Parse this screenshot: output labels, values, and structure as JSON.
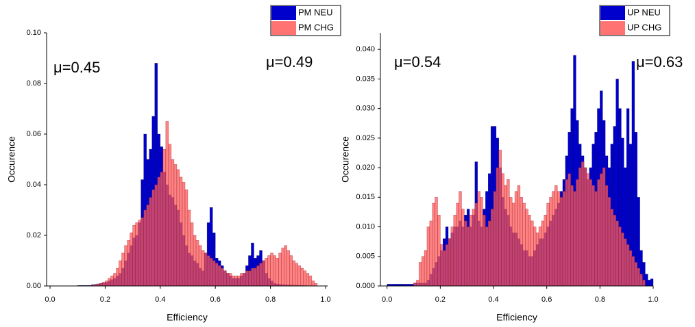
{
  "chart_data": [
    {
      "type": "histogram",
      "x_label": "Efficiency",
      "y_label": "Occurence",
      "annotations": [
        "μ=0.45",
        "μ=0.49"
      ],
      "legend": "upper right",
      "bins": [
        0,
        0.01,
        0.02,
        0.03,
        0.04,
        0.05,
        0.06,
        0.07,
        0.08,
        0.09,
        0.1,
        0.11,
        0.12,
        0.13,
        0.14,
        0.15,
        0.16,
        0.17,
        0.18,
        0.19,
        0.2,
        0.21,
        0.22,
        0.23,
        0.24,
        0.25,
        0.26,
        0.27,
        0.28,
        0.29,
        0.3,
        0.31,
        0.32,
        0.33,
        0.34,
        0.35,
        0.36,
        0.37,
        0.38,
        0.39,
        0.4,
        0.41,
        0.42,
        0.43,
        0.44,
        0.45,
        0.46,
        0.47,
        0.48,
        0.49,
        0.5,
        0.51,
        0.52,
        0.53,
        0.54,
        0.55,
        0.56,
        0.57,
        0.58,
        0.59,
        0.6,
        0.61,
        0.62,
        0.63,
        0.64,
        0.65,
        0.66,
        0.67,
        0.68,
        0.69,
        0.7,
        0.71,
        0.72,
        0.73,
        0.74,
        0.75,
        0.76,
        0.77,
        0.78,
        0.79,
        0.8,
        0.81,
        0.82,
        0.83,
        0.84,
        0.85,
        0.86,
        0.87,
        0.88,
        0.89,
        0.9,
        0.91,
        0.92,
        0.93,
        0.94,
        0.95,
        0.96,
        0.97,
        0.98,
        0.99,
        1
      ],
      "series": [
        {
          "name": "PM NEU",
          "color": "#0000cc",
          "values": [
            0,
            0,
            0,
            0,
            0,
            0,
            0,
            0,
            0,
            0,
            0.0002,
            0.0002,
            0.0002,
            0.0002,
            0.0002,
            0.0005,
            0.0006,
            0.0008,
            0.001,
            0.0012,
            0.0015,
            0.002,
            0.0025,
            0.003,
            0.004,
            0.005,
            0.007,
            0.01,
            0.013,
            0.016,
            0.019,
            0.02,
            0.025,
            0.042,
            0.06,
            0.05,
            0.054,
            0.067,
            0.088,
            0.06,
            0.055,
            0.045,
            0.04,
            0.036,
            0.035,
            0.032,
            0.03,
            0.025,
            0.02,
            0.016,
            0.013,
            0.012,
            0.01,
            0.009,
            0.007,
            0.006,
            0.013,
            0.025,
            0.031,
            0.021,
            0.011,
            0.01,
            0.008,
            0.006,
            0.005,
            0.004,
            0.003,
            0.003,
            0.003,
            0.004,
            0.005,
            0.008,
            0.012,
            0.017,
            0.011,
            0.012,
            0.014,
            0.01,
            0.005,
            0.003,
            0.002,
            0.001,
            0.0008,
            0.0006,
            0.0005,
            0.0005,
            0.0004,
            0.0004,
            0.0003,
            0.0003,
            0.0002,
            0.0002,
            0.0002,
            0.0001,
            0.0001,
            0.0001,
            0,
            0,
            0,
            0
          ]
        },
        {
          "name": "PM CHG",
          "color": "#ff5a5a",
          "values": [
            0,
            0,
            0,
            0,
            0,
            0,
            0,
            0,
            0,
            0,
            0,
            0,
            0,
            0,
            0,
            0.0003,
            0.0005,
            0.0008,
            0.001,
            0.0015,
            0.002,
            0.003,
            0.004,
            0.005,
            0.007,
            0.01,
            0.013,
            0.016,
            0.018,
            0.021,
            0.024,
            0.025,
            0.026,
            0.027,
            0.03,
            0.032,
            0.035,
            0.038,
            0.04,
            0.043,
            0.045,
            0.054,
            0.065,
            0.056,
            0.05,
            0.048,
            0.046,
            0.043,
            0.041,
            0.038,
            0.03,
            0.025,
            0.02,
            0.018,
            0.016,
            0.014,
            0.013,
            0.012,
            0.011,
            0.01,
            0.009,
            0.008,
            0.007,
            0.006,
            0.005,
            0.005,
            0.004,
            0.004,
            0.004,
            0.005,
            0.005,
            0.006,
            0.006,
            0.007,
            0.007,
            0.008,
            0.009,
            0.01,
            0.011,
            0.012,
            0.013,
            0.012,
            0.011,
            0.013,
            0.015,
            0.016,
            0.014,
            0.012,
            0.01,
            0.009,
            0.008,
            0.007,
            0.006,
            0.005,
            0.004,
            0.002,
            0.001,
            0,
            0,
            0
          ]
        }
      ],
      "xlim": [
        -0.0125,
        1.0075
      ],
      "ylim": [
        0,
        0.1
      ],
      "xticks": [
        {
          "value": 0,
          "label": "0.0"
        },
        0.2,
        0.4,
        0.6,
        0.8,
        {
          "value": 1,
          "label": "1.0"
        }
      ],
      "yticks": [
        {
          "value": 0,
          "label": "0.00"
        },
        {
          "value": 0.02,
          "label": "0.02"
        },
        {
          "value": 0.04,
          "label": "0.04"
        },
        {
          "value": 0.06,
          "label": "0.06"
        },
        {
          "value": 0.08,
          "label": "0.08"
        },
        {
          "value": 0.1,
          "label": "0.10"
        }
      ]
    },
    {
      "type": "histogram",
      "x_label": "Efficiency",
      "y_label": "Occurence",
      "annotations": [
        "μ=0.54",
        "μ=0.63"
      ],
      "legend": "upper right",
      "bins": [
        0,
        0.01,
        0.02,
        0.03,
        0.04,
        0.05,
        0.06,
        0.07,
        0.08,
        0.09,
        0.1,
        0.11,
        0.12,
        0.13,
        0.14,
        0.15,
        0.16,
        0.17,
        0.18,
        0.19,
        0.2,
        0.21,
        0.22,
        0.23,
        0.24,
        0.25,
        0.26,
        0.27,
        0.28,
        0.29,
        0.3,
        0.31,
        0.32,
        0.33,
        0.34,
        0.35,
        0.36,
        0.37,
        0.38,
        0.39,
        0.4,
        0.41,
        0.42,
        0.43,
        0.44,
        0.45,
        0.46,
        0.47,
        0.48,
        0.49,
        0.5,
        0.51,
        0.52,
        0.53,
        0.54,
        0.55,
        0.56,
        0.57,
        0.58,
        0.59,
        0.6,
        0.61,
        0.62,
        0.63,
        0.64,
        0.65,
        0.66,
        0.67,
        0.68,
        0.69,
        0.7,
        0.71,
        0.72,
        0.73,
        0.74,
        0.75,
        0.76,
        0.77,
        0.78,
        0.79,
        0.8,
        0.81,
        0.82,
        0.83,
        0.84,
        0.85,
        0.86,
        0.87,
        0.88,
        0.89,
        0.9,
        0.91,
        0.92,
        0.93,
        0.94,
        0.95,
        0.96,
        0.97,
        0.98,
        0.99,
        1
      ],
      "series": [
        {
          "name": "UP NEU",
          "color": "#0000cc",
          "values": [
            0.0003,
            0.0003,
            0.0003,
            0.0003,
            0.0003,
            0.0003,
            0.0003,
            0.0003,
            0.0003,
            0.0003,
            0.0005,
            0.0005,
            0.0005,
            0.0005,
            0.0005,
            0.001,
            0.002,
            0.003,
            0.004,
            0.005,
            0.006,
            0.008,
            0.01,
            0.008,
            0.009,
            0.01,
            0.01,
            0.011,
            0.01,
            0.012,
            0.013,
            0.01,
            0.012,
            0.021,
            0.011,
            0.01,
            0.013,
            0.016,
            0.019,
            0.027,
            0.027,
            0.025,
            0.02,
            0.015,
            0.013,
            0.012,
            0.01,
            0.009,
            0.009,
            0.008,
            0.007,
            0.006,
            0.006,
            0.005,
            0.005,
            0.006,
            0.007,
            0.008,
            0.008,
            0.009,
            0.01,
            0.011,
            0.012,
            0.013,
            0.014,
            0.016,
            0.018,
            0.022,
            0.026,
            0.03,
            0.039,
            0.028,
            0.024,
            0.022,
            0.02,
            0.018,
            0.02,
            0.024,
            0.026,
            0.03,
            0.033,
            0.028,
            0.022,
            0.02,
            0.024,
            0.027,
            0.035,
            0.03,
            0.025,
            0.02,
            0.03,
            0.024,
            0.038,
            0.026,
            0.015,
            0.006,
            0.004,
            0.002,
            0.001,
            0.0012
          ]
        },
        {
          "name": "UP CHG",
          "color": "#ff5a5a",
          "values": [
            0,
            0,
            0,
            0,
            0,
            0,
            0,
            0,
            0,
            0,
            0.0005,
            0.001,
            0.004,
            0.005,
            0.006,
            0.01,
            0.011,
            0.014,
            0.015,
            0.012,
            0.007,
            0.006,
            0.007,
            0.008,
            0.01,
            0.012,
            0.014,
            0.016,
            0.013,
            0.011,
            0.01,
            0.012,
            0.013,
            0.014,
            0.016,
            0.015,
            0.012,
            0.01,
            0.011,
            0.013,
            0.016,
            0.02,
            0.023,
            0.019,
            0.017,
            0.018,
            0.015,
            0.014,
            0.016,
            0.017,
            0.015,
            0.014,
            0.013,
            0.012,
            0.011,
            0.01,
            0.009,
            0.01,
            0.011,
            0.012,
            0.014,
            0.015,
            0.016,
            0.017,
            0.016,
            0.015,
            0.016,
            0.018,
            0.019,
            0.017,
            0.016,
            0.018,
            0.02,
            0.021,
            0.02,
            0.019,
            0.018,
            0.017,
            0.016,
            0.018,
            0.019,
            0.02,
            0.017,
            0.015,
            0.013,
            0.012,
            0.011,
            0.01,
            0.009,
            0.008,
            0.007,
            0.006,
            0.005,
            0.004,
            0.003,
            0.002,
            0.001,
            0,
            0,
            0
          ]
        }
      ],
      "xlim": [
        -0.025,
        1.0
      ],
      "ylim": [
        0,
        0.0428
      ],
      "xticks": [
        {
          "value": 0,
          "label": "0.0"
        },
        0.2,
        0.4,
        0.6,
        0.8,
        {
          "value": 1,
          "label": "1.0"
        }
      ],
      "yticks": [
        {
          "value": 0,
          "label": "0.000"
        },
        {
          "value": 0.005,
          "label": "0.005"
        },
        {
          "value": 0.01,
          "label": "0.010"
        },
        {
          "value": 0.015,
          "label": "0.015"
        },
        {
          "value": 0.02,
          "label": "0.020"
        },
        {
          "value": 0.025,
          "label": "0.025"
        },
        {
          "value": 0.03,
          "label": "0.030"
        },
        {
          "value": 0.035,
          "label": "0.035"
        },
        {
          "value": 0.04,
          "label": "0.040"
        }
      ]
    }
  ]
}
